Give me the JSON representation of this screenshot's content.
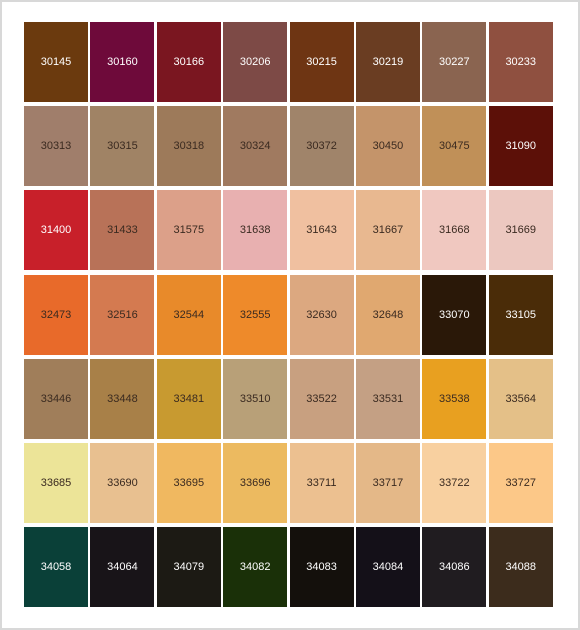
{
  "swatches": [
    [
      {
        "code": "30145",
        "color": "#6b3a0e"
      },
      {
        "code": "30160",
        "color": "#6e0a3a"
      },
      {
        "code": "30166",
        "color": "#7a1620"
      },
      {
        "code": "30206",
        "color": "#7d4a46"
      },
      {
        "code": "30215",
        "color": "#6e3513"
      },
      {
        "code": "30219",
        "color": "#6a3d22"
      },
      {
        "code": "30227",
        "color": "#8a6450"
      },
      {
        "code": "30233",
        "color": "#8f5040"
      }
    ],
    [
      {
        "code": "30313",
        "color": "#a07e6b"
      },
      {
        "code": "30315",
        "color": "#a08365"
      },
      {
        "code": "30318",
        "color": "#9d7a5a"
      },
      {
        "code": "30324",
        "color": "#a07a60"
      },
      {
        "code": "30372",
        "color": "#a0846a"
      },
      {
        "code": "30450",
        "color": "#c4946a"
      },
      {
        "code": "30475",
        "color": "#c09058"
      },
      {
        "code": "31090",
        "color": "#5c1008"
      }
    ],
    [
      {
        "code": "31400",
        "color": "#c8202a"
      },
      {
        "code": "31433",
        "color": "#b87258"
      },
      {
        "code": "31575",
        "color": "#dca089"
      },
      {
        "code": "31638",
        "color": "#e8b0b0"
      },
      {
        "code": "31643",
        "color": "#f0c0a0"
      },
      {
        "code": "31667",
        "color": "#e8b890"
      },
      {
        "code": "31668",
        "color": "#f0c8c0"
      },
      {
        "code": "31669",
        "color": "#ecc8c0"
      }
    ],
    [
      {
        "code": "32473",
        "color": "#e86a2a"
      },
      {
        "code": "32516",
        "color": "#d47a50"
      },
      {
        "code": "32544",
        "color": "#e88a2a"
      },
      {
        "code": "32555",
        "color": "#ee8a2a"
      },
      {
        "code": "32630",
        "color": "#dca880"
      },
      {
        "code": "32648",
        "color": "#e0a870"
      },
      {
        "code": "33070",
        "color": "#2a1808"
      },
      {
        "code": "33105",
        "color": "#4a2c08"
      }
    ],
    [
      {
        "code": "33446",
        "color": "#a07e5a"
      },
      {
        "code": "33448",
        "color": "#a88048"
      },
      {
        "code": "33481",
        "color": "#c89a30"
      },
      {
        "code": "33510",
        "color": "#b8a078"
      },
      {
        "code": "33522",
        "color": "#c8a080"
      },
      {
        "code": "33531",
        "color": "#c4a084"
      },
      {
        "code": "33538",
        "color": "#e8a020"
      },
      {
        "code": "33564",
        "color": "#e4c088"
      }
    ],
    [
      {
        "code": "33685",
        "color": "#ece498"
      },
      {
        "code": "33690",
        "color": "#e8c090"
      },
      {
        "code": "33695",
        "color": "#f0b860"
      },
      {
        "code": "33696",
        "color": "#ecba60"
      },
      {
        "code": "33711",
        "color": "#ecc090"
      },
      {
        "code": "33717",
        "color": "#e4b888"
      },
      {
        "code": "33722",
        "color": "#f8d0a0"
      },
      {
        "code": "33727",
        "color": "#fcc888"
      }
    ],
    [
      {
        "code": "34058",
        "color": "#0a4038"
      },
      {
        "code": "34064",
        "color": "#181418"
      },
      {
        "code": "34079",
        "color": "#1c1a14"
      },
      {
        "code": "34082",
        "color": "#1a3008"
      },
      {
        "code": "34083",
        "color": "#14100c"
      },
      {
        "code": "34084",
        "color": "#141018"
      },
      {
        "code": "34086",
        "color": "#201c20"
      },
      {
        "code": "34088",
        "color": "#3c2c1c"
      }
    ]
  ]
}
